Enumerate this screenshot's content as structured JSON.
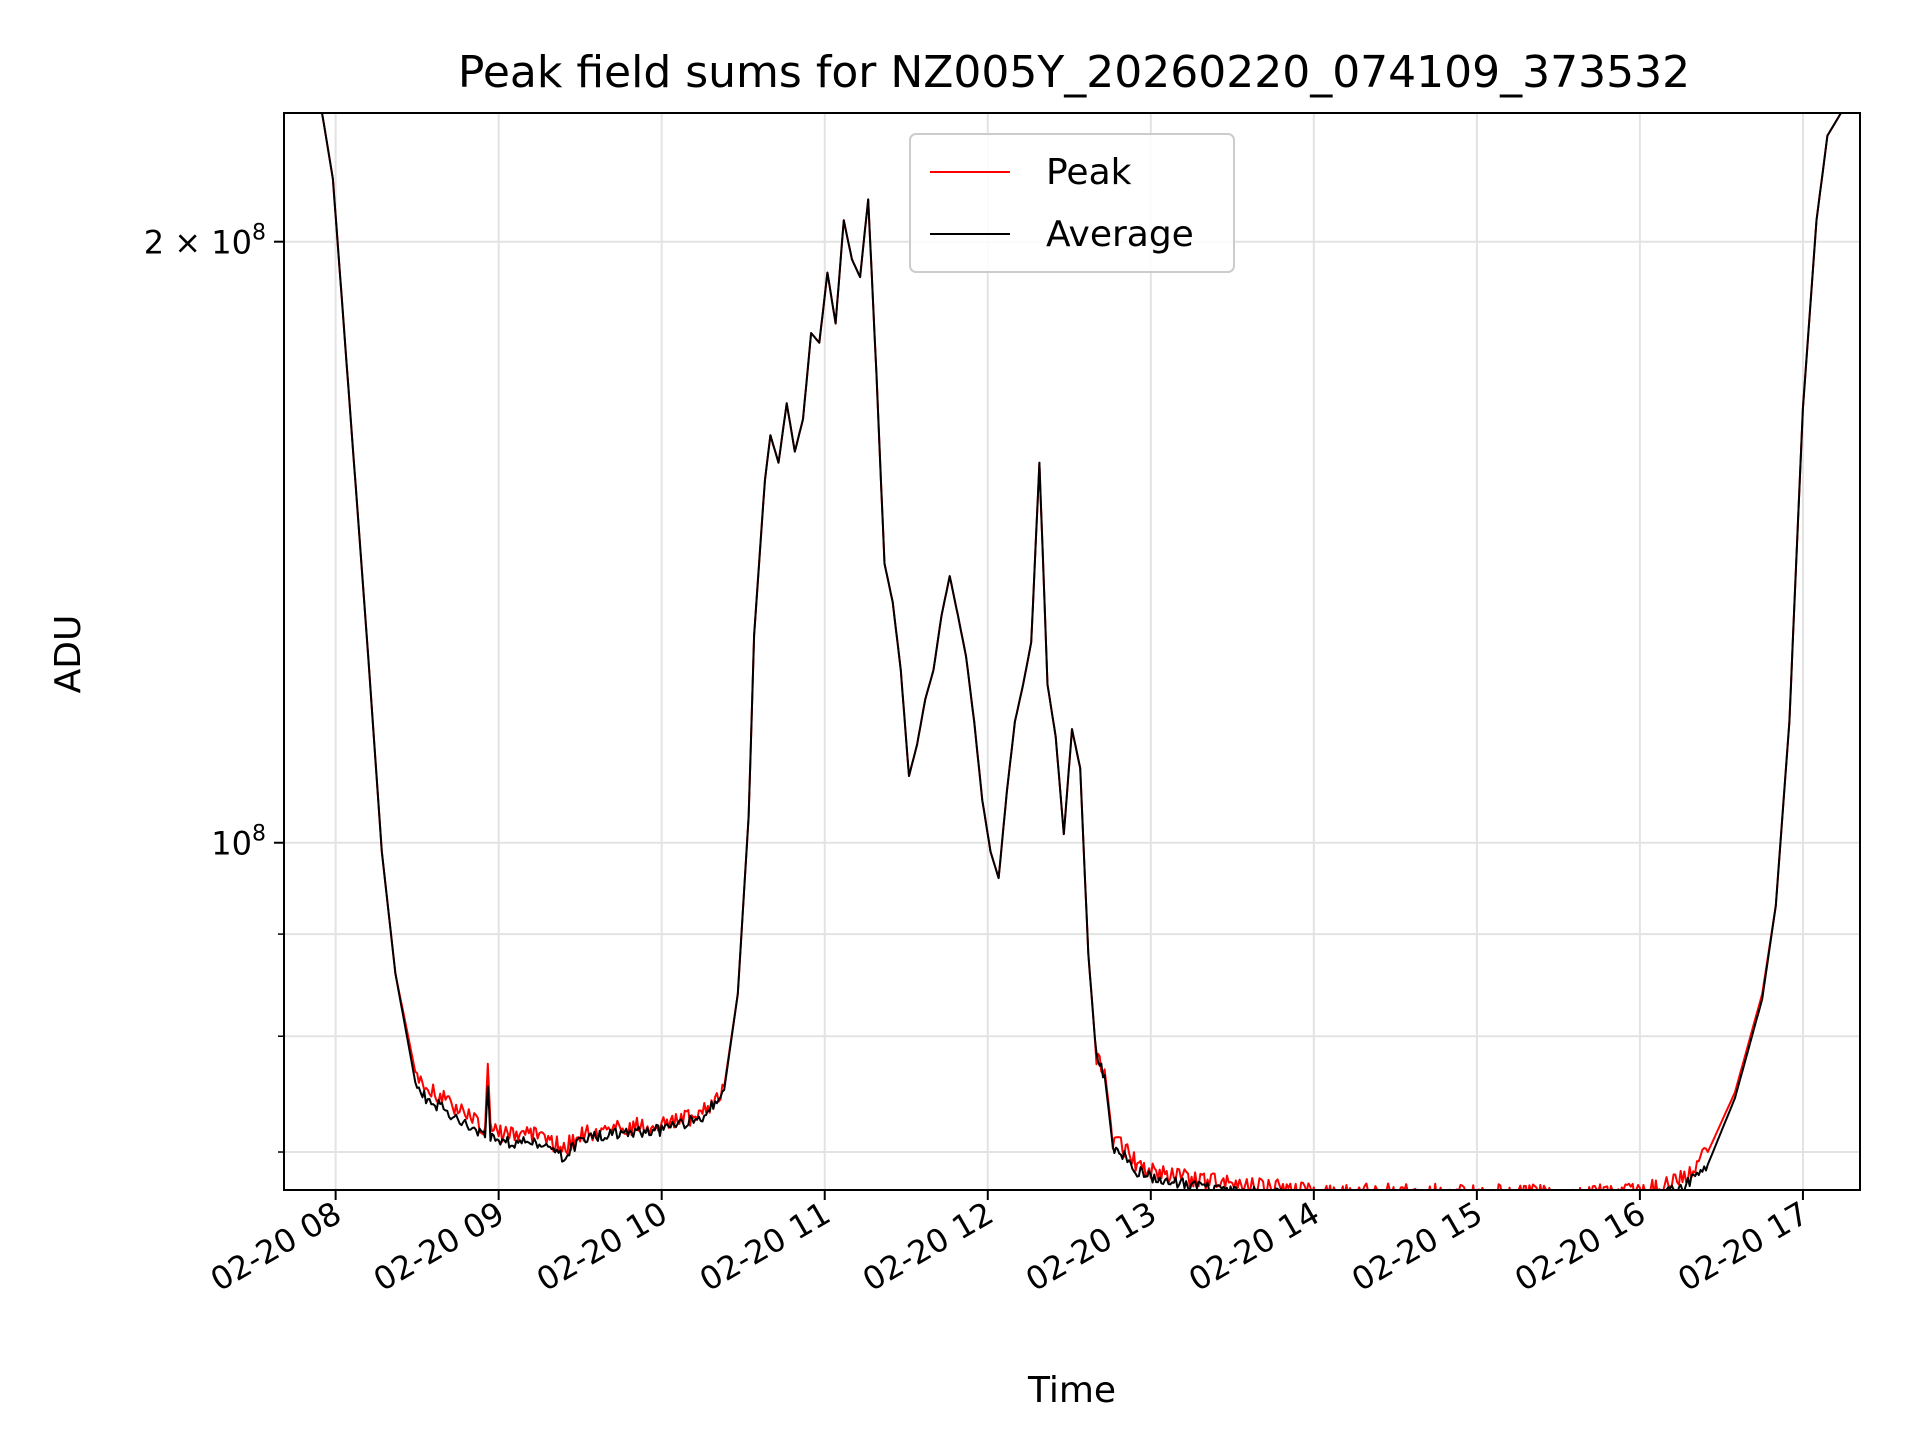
{
  "chart_data": {
    "type": "line",
    "title": "Peak field sums for NZ005Y_20260220_074109_373532",
    "xlabel": "Time",
    "ylabel": "ADU",
    "y_scale": "log",
    "grid": true,
    "legend_position": "top-center",
    "xlim": [
      "02-20 07:41",
      "02-20 17:21"
    ],
    "ylim": [
      67000000,
      232000000
    ],
    "x_ticks": [
      "02-20 08",
      "02-20 09",
      "02-20 10",
      "02-20 11",
      "02-20 12",
      "02-20 13",
      "02-20 14",
      "02-20 15",
      "02-20 16",
      "02-20 17"
    ],
    "y_ticks": [
      {
        "value": 200000000,
        "label_base": "2 × 10",
        "label_exp": "8"
      },
      {
        "value": 100000000,
        "label_base": "10",
        "label_exp": "8"
      }
    ],
    "colors": {
      "Peak": "#ff0000",
      "Average": "#000000"
    },
    "series": [
      {
        "name": "Peak",
        "x": [
          "02-20 07:41",
          "02-20 07:55",
          "02-20 07:59",
          "02-20 08:06",
          "02-20 08:12",
          "02-20 08:17",
          "02-20 08:22",
          "02-20 08:30",
          "02-20 08:45",
          "02-20 08:55",
          "02-20 08:56",
          "02-20 08:57",
          "02-20 09:00",
          "02-20 09:15",
          "02-20 09:24",
          "02-20 09:30",
          "02-20 09:45",
          "02-20 10:00",
          "02-20 10:15",
          "02-20 10:23",
          "02-20 10:28",
          "02-20 10:32",
          "02-20 10:34",
          "02-20 10:38",
          "02-20 10:40",
          "02-20 10:43",
          "02-20 10:46",
          "02-20 10:49",
          "02-20 10:52",
          "02-20 10:55",
          "02-20 10:58",
          "02-20 11:01",
          "02-20 11:04",
          "02-20 11:07",
          "02-20 11:10",
          "02-20 11:13",
          "02-20 11:16",
          "02-20 11:19",
          "02-20 11:22",
          "02-20 11:25",
          "02-20 11:28",
          "02-20 11:31",
          "02-20 11:34",
          "02-20 11:37",
          "02-20 11:40",
          "02-20 11:43",
          "02-20 11:46",
          "02-20 11:49",
          "02-20 11:52",
          "02-20 11:55",
          "02-20 11:58",
          "02-20 12:01",
          "02-20 12:04",
          "02-20 12:07",
          "02-20 12:10",
          "02-20 12:13",
          "02-20 12:16",
          "02-20 12:19",
          "02-20 12:22",
          "02-20 12:25",
          "02-20 12:28",
          "02-20 12:31",
          "02-20 12:34",
          "02-20 12:37",
          "02-20 12:40",
          "02-20 12:43",
          "02-20 12:46",
          "02-20 12:49",
          "02-20 12:52",
          "02-20 12:55",
          "02-20 13:00",
          "02-20 13:15",
          "02-20 13:30",
          "02-20 14:00",
          "02-20 14:30",
          "02-20 15:00",
          "02-20 15:30",
          "02-20 16:00",
          "02-20 16:15",
          "02-20 16:25",
          "02-20 16:35",
          "02-20 16:45",
          "02-20 16:50",
          "02-20 16:55",
          "02-20 17:00",
          "02-20 17:05",
          "02-20 17:09",
          "02-20 17:14",
          "02-20 17:21"
        ],
        "y": [
          232000000,
          232000000,
          215000000,
          160000000,
          124000000,
          99000000,
          86000000,
          76000000,
          73500000,
          72000000,
          77500000,
          72200000,
          71500000,
          71400000,
          70200000,
          71500000,
          72000000,
          72200000,
          73200000,
          75500000,
          84000000,
          103000000,
          127000000,
          152000000,
          160000000,
          155000000,
          166000000,
          157000000,
          163000000,
          180000000,
          178000000,
          193000000,
          182000000,
          205000000,
          196000000,
          192000000,
          210000000,
          172000000,
          138000000,
          132000000,
          122000000,
          108000000,
          112000000,
          118000000,
          122000000,
          130000000,
          136000000,
          130000000,
          124000000,
          115000000,
          105000000,
          99000000,
          96000000,
          106000000,
          115000000,
          120000000,
          126000000,
          155000000,
          120000000,
          113000000,
          101000000,
          114000000,
          109000000,
          88000000,
          78000000,
          77000000,
          71000000,
          70500000,
          70000000,
          69000000,
          68500000,
          67800000,
          67400000,
          67000000,
          66900000,
          66800000,
          66700000,
          66900000,
          67800000,
          70000000,
          75000000,
          84000000,
          93000000,
          115000000,
          165000000,
          205000000,
          226000000,
          232000000,
          232000000
        ]
      },
      {
        "name": "Average",
        "x": [
          "02-20 07:41",
          "02-20 07:55",
          "02-20 07:59",
          "02-20 08:06",
          "02-20 08:12",
          "02-20 08:17",
          "02-20 08:22",
          "02-20 08:30",
          "02-20 08:45",
          "02-20 08:55",
          "02-20 08:56",
          "02-20 08:57",
          "02-20 09:00",
          "02-20 09:15",
          "02-20 09:24",
          "02-20 09:30",
          "02-20 09:45",
          "02-20 10:00",
          "02-20 10:15",
          "02-20 10:23",
          "02-20 10:28",
          "02-20 10:32",
          "02-20 10:34",
          "02-20 10:38",
          "02-20 10:40",
          "02-20 10:43",
          "02-20 10:46",
          "02-20 10:49",
          "02-20 10:52",
          "02-20 10:55",
          "02-20 10:58",
          "02-20 11:01",
          "02-20 11:04",
          "02-20 11:07",
          "02-20 11:10",
          "02-20 11:13",
          "02-20 11:16",
          "02-20 11:19",
          "02-20 11:22",
          "02-20 11:25",
          "02-20 11:28",
          "02-20 11:31",
          "02-20 11:34",
          "02-20 11:37",
          "02-20 11:40",
          "02-20 11:43",
          "02-20 11:46",
          "02-20 11:49",
          "02-20 11:52",
          "02-20 11:55",
          "02-20 11:58",
          "02-20 12:01",
          "02-20 12:04",
          "02-20 12:07",
          "02-20 12:10",
          "02-20 12:13",
          "02-20 12:16",
          "02-20 12:19",
          "02-20 12:22",
          "02-20 12:25",
          "02-20 12:28",
          "02-20 12:31",
          "02-20 12:34",
          "02-20 12:37",
          "02-20 12:40",
          "02-20 12:43",
          "02-20 12:46",
          "02-20 12:49",
          "02-20 12:52",
          "02-20 12:55",
          "02-20 13:00",
          "02-20 13:15",
          "02-20 13:30",
          "02-20 14:00",
          "02-20 14:30",
          "02-20 15:00",
          "02-20 15:30",
          "02-20 16:00",
          "02-20 16:15",
          "02-20 16:25",
          "02-20 16:35",
          "02-20 16:45",
          "02-20 16:50",
          "02-20 16:55",
          "02-20 17:00",
          "02-20 17:05",
          "02-20 17:09",
          "02-20 17:14",
          "02-20 17:21"
        ],
        "y": [
          232000000,
          232000000,
          215000000,
          160000000,
          124000000,
          99000000,
          86000000,
          75000000,
          72800000,
          71200000,
          75500000,
          71400000,
          70800000,
          70700000,
          69600000,
          71000000,
          71600000,
          71800000,
          72800000,
          75200000,
          84000000,
          103000000,
          127000000,
          152000000,
          160000000,
          155000000,
          166000000,
          157000000,
          163000000,
          180000000,
          178000000,
          193000000,
          182000000,
          205000000,
          196000000,
          192000000,
          210000000,
          172000000,
          138000000,
          132000000,
          122000000,
          108000000,
          112000000,
          118000000,
          122000000,
          130000000,
          136000000,
          130000000,
          124000000,
          115000000,
          105000000,
          99000000,
          96000000,
          106000000,
          115000000,
          120000000,
          126000000,
          155000000,
          120000000,
          113000000,
          101000000,
          114000000,
          109000000,
          88000000,
          78000000,
          76500000,
          70500000,
          70000000,
          69500000,
          68500000,
          68000000,
          67300000,
          66900000,
          66500000,
          66400000,
          66300000,
          66200000,
          66400000,
          67000000,
          69000000,
          74500000,
          83500000,
          93000000,
          115000000,
          165000000,
          205000000,
          226000000,
          232000000,
          232000000
        ]
      }
    ]
  }
}
